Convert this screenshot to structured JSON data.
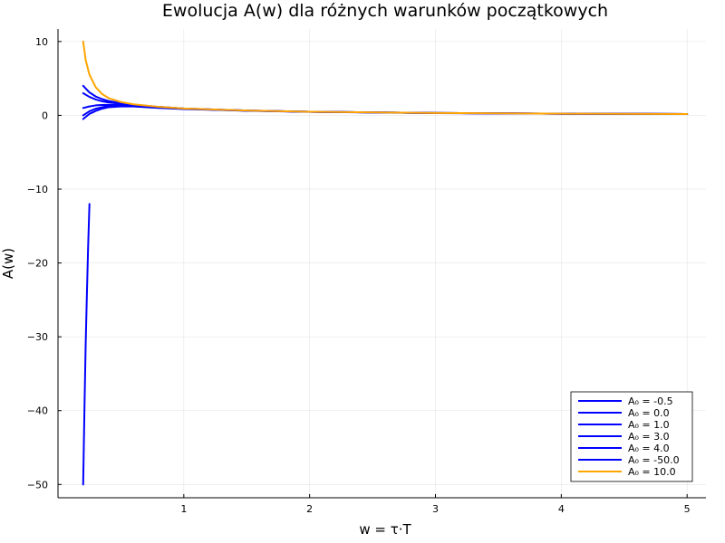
{
  "chart_data": {
    "type": "line",
    "title": "Ewolucja A(w) dla różnych warunków początkowych",
    "xlabel": "w = τ·T",
    "ylabel": "A(w)",
    "xlim": [
      0.0,
      5.15
    ],
    "ylim": [
      -51.8,
      11.7
    ],
    "xticks": [
      1,
      2,
      3,
      4,
      5
    ],
    "yticks": [
      10,
      0,
      -10,
      -20,
      -30,
      -40,
      -50
    ],
    "ytick_labels": [
      "10",
      "0",
      "−10",
      "−20",
      "−30",
      "−40",
      "−50"
    ],
    "grid": true,
    "legend_position": "bottom-right",
    "series": [
      {
        "name": "A₀ = -0.5",
        "color": "#0000ff",
        "x": [
          0.2,
          0.25,
          0.3,
          0.35,
          0.4,
          0.5,
          0.6,
          0.8,
          1.0,
          1.5,
          2.0,
          3.0,
          4.0,
          5.0
        ],
        "y": [
          -0.5,
          0.2,
          0.6,
          0.9,
          1.1,
          1.2,
          1.2,
          1.0,
          0.85,
          0.62,
          0.47,
          0.3,
          0.22,
          0.18
        ]
      },
      {
        "name": "A₀ = 0.0",
        "color": "#0000ff",
        "x": [
          0.2,
          0.25,
          0.3,
          0.35,
          0.4,
          0.5,
          0.6,
          0.8,
          1.0,
          1.5,
          2.0,
          3.0,
          4.0,
          5.0
        ],
        "y": [
          0.0,
          0.55,
          0.9,
          1.1,
          1.25,
          1.3,
          1.25,
          1.05,
          0.88,
          0.63,
          0.48,
          0.31,
          0.22,
          0.18
        ]
      },
      {
        "name": "A₀ = 1.0",
        "color": "#0000ff",
        "x": [
          0.2,
          0.25,
          0.3,
          0.35,
          0.4,
          0.5,
          0.6,
          0.8,
          1.0,
          1.5,
          2.0,
          3.0,
          4.0,
          5.0
        ],
        "y": [
          1.0,
          1.2,
          1.35,
          1.4,
          1.42,
          1.4,
          1.3,
          1.08,
          0.9,
          0.64,
          0.48,
          0.31,
          0.22,
          0.18
        ]
      },
      {
        "name": "A₀ = 3.0",
        "color": "#0000ff",
        "x": [
          0.2,
          0.25,
          0.3,
          0.35,
          0.4,
          0.5,
          0.6,
          0.8,
          1.0,
          1.5,
          2.0,
          3.0,
          4.0,
          5.0
        ],
        "y": [
          3.0,
          2.5,
          2.15,
          1.9,
          1.75,
          1.55,
          1.4,
          1.12,
          0.92,
          0.65,
          0.49,
          0.31,
          0.22,
          0.18
        ]
      },
      {
        "name": "A₀ = 4.0",
        "color": "#0000ff",
        "x": [
          0.2,
          0.25,
          0.3,
          0.35,
          0.4,
          0.5,
          0.6,
          0.8,
          1.0,
          1.5,
          2.0,
          3.0,
          4.0,
          5.0
        ],
        "y": [
          4.0,
          3.1,
          2.55,
          2.2,
          1.95,
          1.65,
          1.45,
          1.15,
          0.93,
          0.65,
          0.49,
          0.31,
          0.22,
          0.18
        ]
      },
      {
        "name": "A₀ = -50.0",
        "color": "#0000ff",
        "x": [
          0.2,
          0.21,
          0.22,
          0.23,
          0.24,
          0.25
        ],
        "y": [
          -50.0,
          -40.0,
          -31.0,
          -24.0,
          -17.5,
          -12.0
        ]
      },
      {
        "name": "A₀ = 10.0",
        "color": "#ffa500",
        "x": [
          0.2,
          0.22,
          0.25,
          0.3,
          0.35,
          0.4,
          0.5,
          0.6,
          0.8,
          1.0,
          1.5,
          2.0,
          3.0,
          4.0,
          5.0
        ],
        "y": [
          10.0,
          7.5,
          5.5,
          3.8,
          2.9,
          2.35,
          1.8,
          1.5,
          1.15,
          0.93,
          0.65,
          0.49,
          0.31,
          0.22,
          0.18
        ]
      }
    ]
  }
}
